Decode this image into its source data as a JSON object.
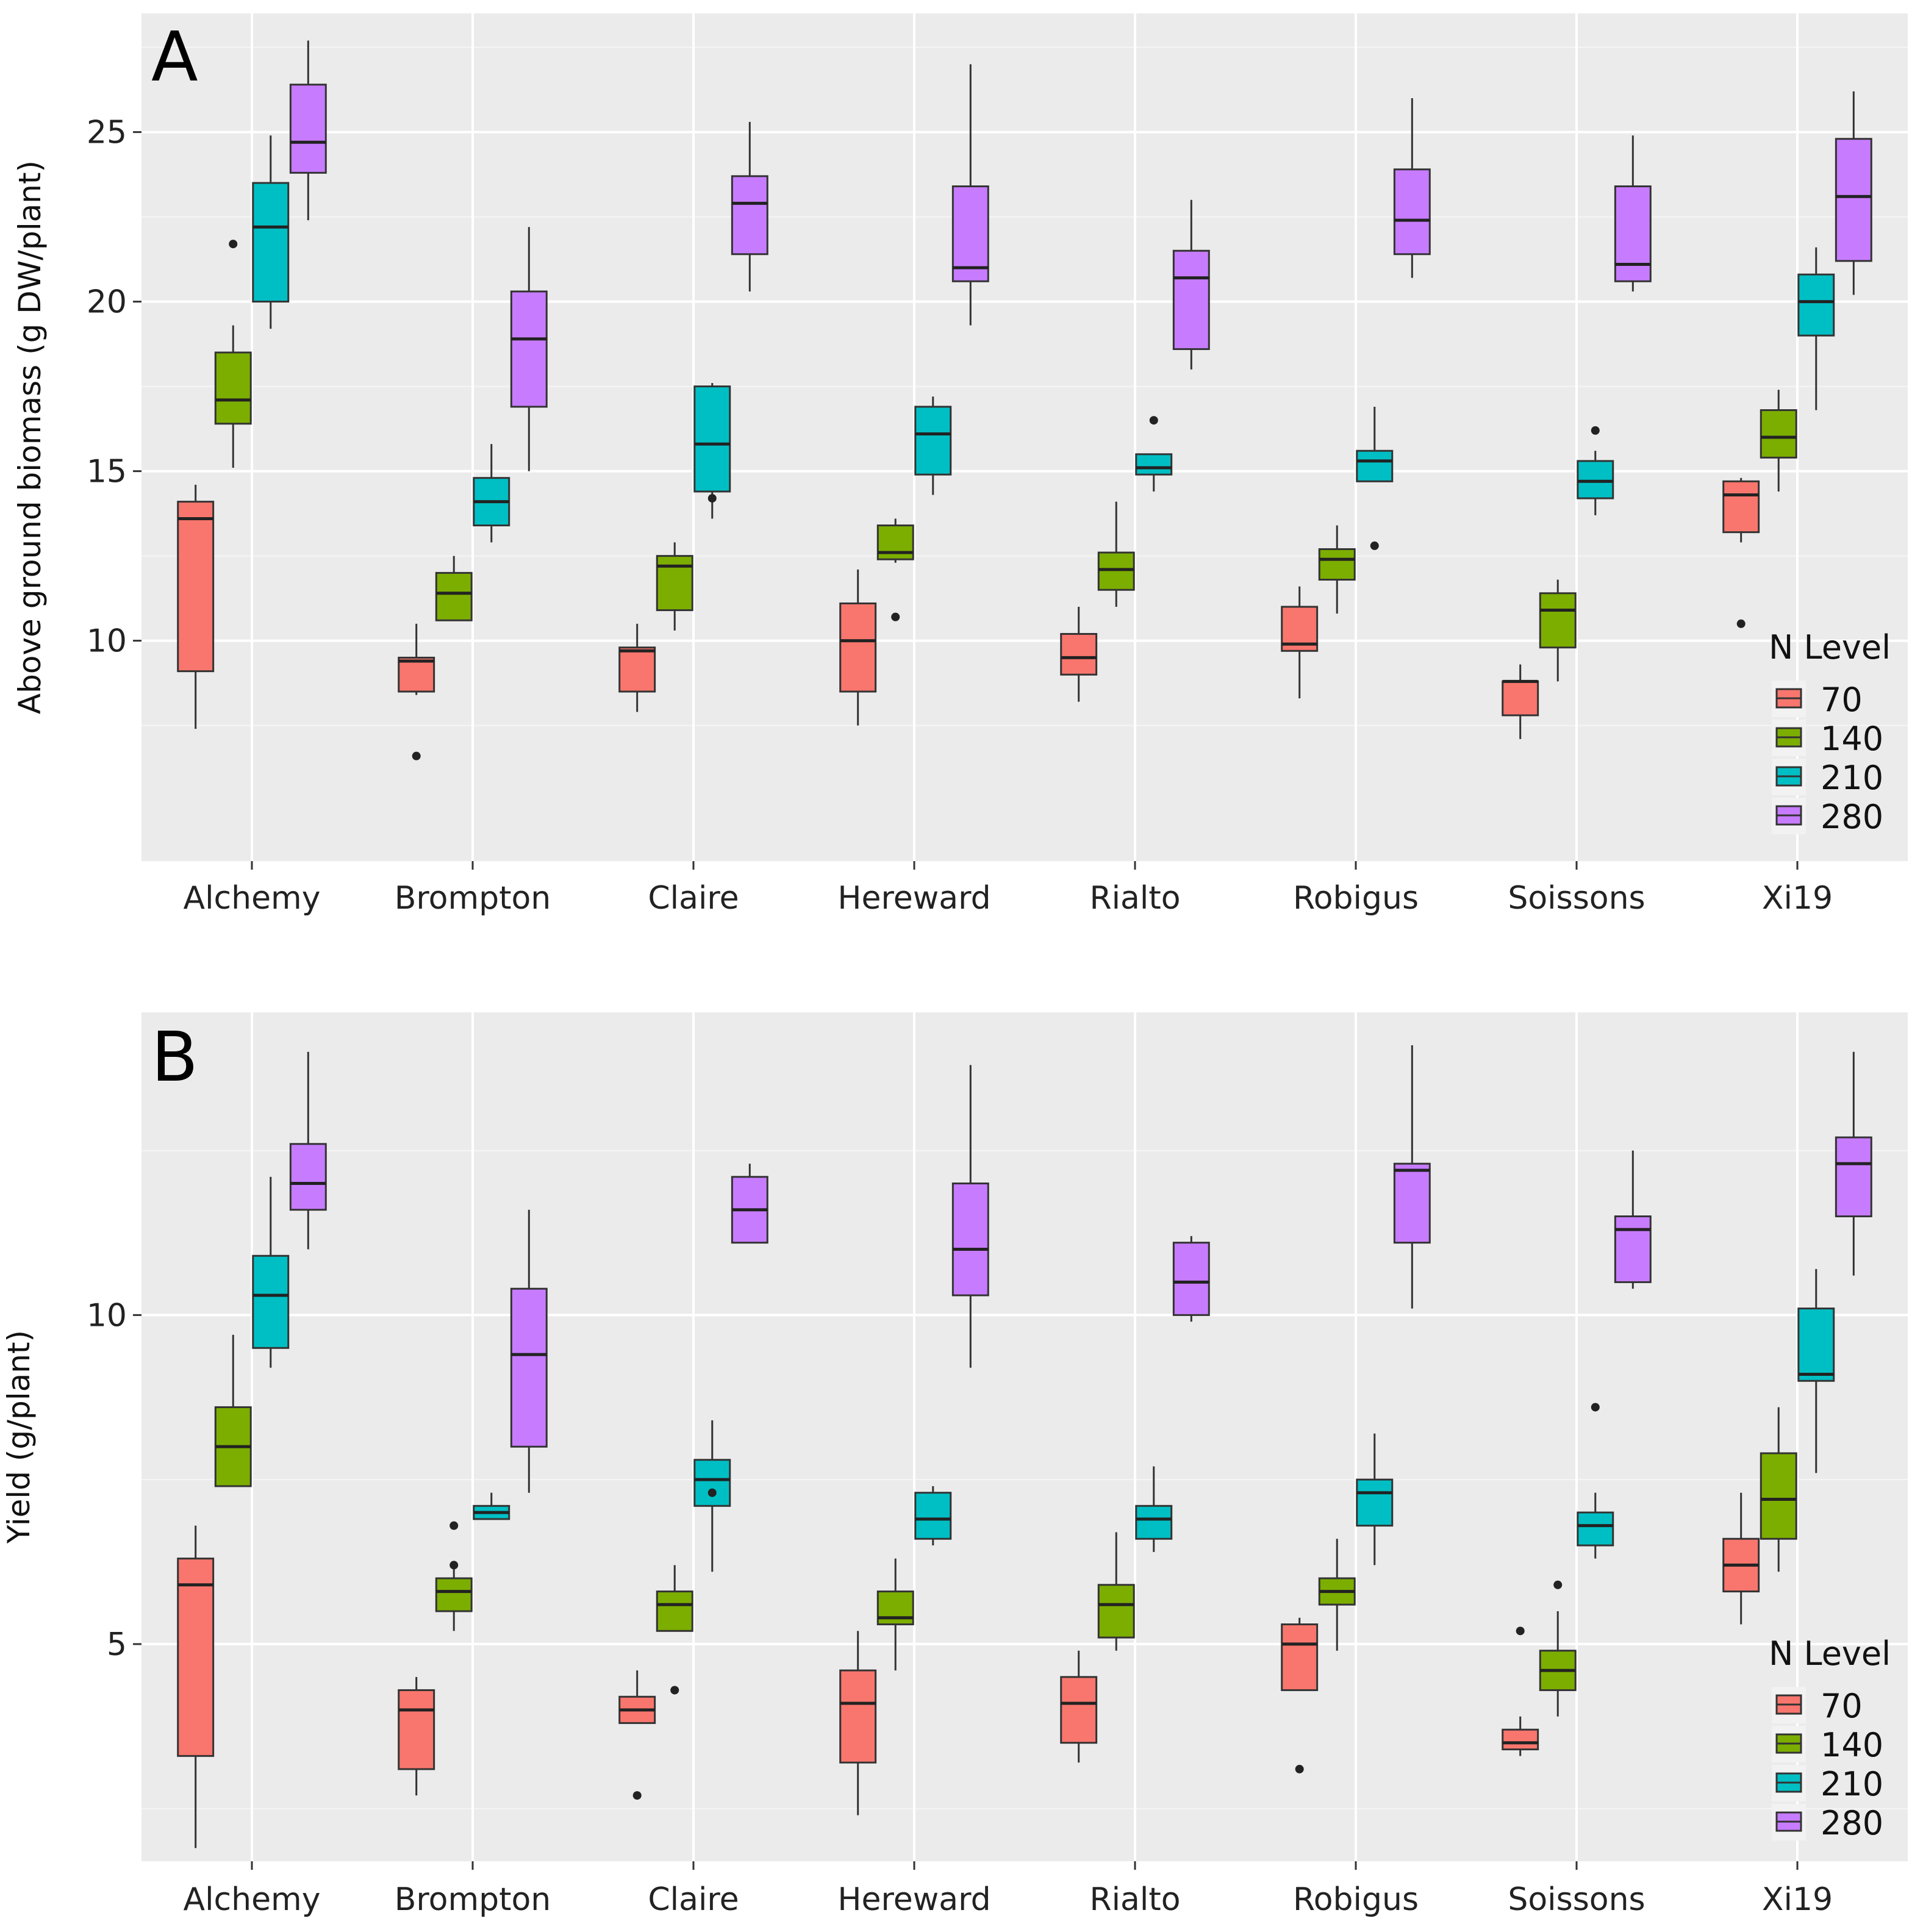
{
  "legend": {
    "title": "N Level",
    "levels": [
      "70",
      "140",
      "210",
      "280"
    ],
    "colors": [
      "#f8766d",
      "#7cae00",
      "#00bfc4",
      "#c77cff"
    ]
  },
  "chart_data": [
    {
      "type": "box",
      "panel_label": "A",
      "title": "",
      "xlabel": "",
      "ylabel": "Above ground biomass (g DW/plant)",
      "ylim": [
        3.5,
        28.5
      ],
      "yticks": [
        10,
        15,
        20,
        25
      ],
      "grid": true,
      "legend_position": "right, lower",
      "categories": [
        "Alchemy",
        "Brompton",
        "Claire",
        "Hereward",
        "Rialto",
        "Robigus",
        "Soissons",
        "Xi19"
      ],
      "series": [
        {
          "name": "70",
          "boxes": [
            {
              "min": 7.4,
              "q1": 9.1,
              "median": 13.6,
              "q3": 14.1,
              "max": 14.6,
              "outliers": []
            },
            {
              "min": 8.4,
              "q1": 8.5,
              "median": 9.4,
              "q3": 9.5,
              "max": 10.5,
              "outliers": [
                6.6
              ]
            },
            {
              "min": 7.9,
              "q1": 8.5,
              "median": 9.7,
              "q3": 9.8,
              "max": 10.5,
              "outliers": []
            },
            {
              "min": 7.5,
              "q1": 8.5,
              "median": 10.0,
              "q3": 11.1,
              "max": 12.1,
              "outliers": []
            },
            {
              "min": 8.2,
              "q1": 9.0,
              "median": 9.5,
              "q3": 10.2,
              "max": 11.0,
              "outliers": []
            },
            {
              "min": 8.3,
              "q1": 9.7,
              "median": 9.9,
              "q3": 11.0,
              "max": 11.6,
              "outliers": []
            },
            {
              "min": 7.1,
              "q1": 7.8,
              "median": 8.8,
              "q3": 8.8,
              "max": 9.3,
              "outliers": []
            },
            {
              "min": 12.9,
              "q1": 13.2,
              "median": 14.3,
              "q3": 14.7,
              "max": 14.8,
              "outliers": [
                10.5
              ]
            }
          ]
        },
        {
          "name": "140",
          "boxes": [
            {
              "min": 15.1,
              "q1": 16.4,
              "median": 17.1,
              "q3": 18.5,
              "max": 19.3,
              "outliers": [
                21.7
              ]
            },
            {
              "min": 10.6,
              "q1": 10.6,
              "median": 11.4,
              "q3": 12.0,
              "max": 12.5,
              "outliers": []
            },
            {
              "min": 10.3,
              "q1": 10.9,
              "median": 12.2,
              "q3": 12.5,
              "max": 12.9,
              "outliers": []
            },
            {
              "min": 12.3,
              "q1": 12.4,
              "median": 12.6,
              "q3": 13.4,
              "max": 13.6,
              "outliers": [
                10.7
              ]
            },
            {
              "min": 11.0,
              "q1": 11.5,
              "median": 12.1,
              "q3": 12.6,
              "max": 14.1,
              "outliers": []
            },
            {
              "min": 10.8,
              "q1": 11.8,
              "median": 12.4,
              "q3": 12.7,
              "max": 13.4,
              "outliers": []
            },
            {
              "min": 8.8,
              "q1": 9.8,
              "median": 10.9,
              "q3": 11.4,
              "max": 11.8,
              "outliers": []
            },
            {
              "min": 14.4,
              "q1": 15.4,
              "median": 16.0,
              "q3": 16.8,
              "max": 17.4,
              "outliers": []
            }
          ]
        },
        {
          "name": "210",
          "boxes": [
            {
              "min": 19.2,
              "q1": 20.0,
              "median": 22.2,
              "q3": 23.5,
              "max": 24.9,
              "outliers": []
            },
            {
              "min": 12.9,
              "q1": 13.4,
              "median": 14.1,
              "q3": 14.8,
              "max": 15.8,
              "outliers": []
            },
            {
              "min": 13.6,
              "q1": 14.4,
              "median": 15.8,
              "q3": 17.5,
              "max": 17.6,
              "outliers": [
                14.2
              ]
            },
            {
              "min": 14.3,
              "q1": 14.9,
              "median": 16.1,
              "q3": 16.9,
              "max": 17.2,
              "outliers": []
            },
            {
              "min": 14.4,
              "q1": 14.9,
              "median": 15.1,
              "q3": 15.5,
              "max": 15.5,
              "outliers": [
                16.5
              ]
            },
            {
              "min": 14.7,
              "q1": 14.7,
              "median": 15.3,
              "q3": 15.6,
              "max": 16.9,
              "outliers": [
                12.8
              ]
            },
            {
              "min": 13.7,
              "q1": 14.2,
              "median": 14.7,
              "q3": 15.3,
              "max": 15.6,
              "outliers": [
                16.2
              ]
            },
            {
              "min": 16.8,
              "q1": 19.0,
              "median": 20.0,
              "q3": 20.8,
              "max": 21.6,
              "outliers": []
            }
          ]
        },
        {
          "name": "280",
          "boxes": [
            {
              "min": 22.4,
              "q1": 23.8,
              "median": 24.7,
              "q3": 26.4,
              "max": 27.7,
              "outliers": []
            },
            {
              "min": 15.0,
              "q1": 16.9,
              "median": 18.9,
              "q3": 20.3,
              "max": 22.2,
              "outliers": []
            },
            {
              "min": 20.3,
              "q1": 21.4,
              "median": 22.9,
              "q3": 23.7,
              "max": 25.3,
              "outliers": []
            },
            {
              "min": 19.3,
              "q1": 20.6,
              "median": 21.0,
              "q3": 23.4,
              "max": 27.0,
              "outliers": []
            },
            {
              "min": 18.0,
              "q1": 18.6,
              "median": 20.7,
              "q3": 21.5,
              "max": 23.0,
              "outliers": []
            },
            {
              "min": 20.7,
              "q1": 21.4,
              "median": 22.4,
              "q3": 23.9,
              "max": 26.0,
              "outliers": []
            },
            {
              "min": 20.3,
              "q1": 20.6,
              "median": 21.1,
              "q3": 23.4,
              "max": 24.9,
              "outliers": []
            },
            {
              "min": 20.2,
              "q1": 21.2,
              "median": 23.1,
              "q3": 24.8,
              "max": 26.2,
              "outliers": []
            }
          ]
        }
      ]
    },
    {
      "type": "box",
      "panel_label": "B",
      "title": "",
      "xlabel": "",
      "ylabel": "Yield (g/plant)",
      "ylim": [
        1.7,
        14.6
      ],
      "yticks": [
        5,
        10
      ],
      "grid": true,
      "legend_position": "right, lower",
      "categories": [
        "Alchemy",
        "Brompton",
        "Claire",
        "Hereward",
        "Rialto",
        "Robigus",
        "Soissons",
        "Xi19"
      ],
      "series": [
        {
          "name": "70",
          "boxes": [
            {
              "min": 1.9,
              "q1": 3.3,
              "median": 5.9,
              "q3": 6.3,
              "max": 6.8,
              "outliers": []
            },
            {
              "min": 2.7,
              "q1": 3.1,
              "median": 4.0,
              "q3": 4.3,
              "max": 4.5,
              "outliers": []
            },
            {
              "min": 3.8,
              "q1": 3.8,
              "median": 4.0,
              "q3": 4.2,
              "max": 4.6,
              "outliers": [
                2.7
              ]
            },
            {
              "min": 2.4,
              "q1": 3.2,
              "median": 4.1,
              "q3": 4.6,
              "max": 5.2,
              "outliers": []
            },
            {
              "min": 3.2,
              "q1": 3.5,
              "median": 4.1,
              "q3": 4.5,
              "max": 4.9,
              "outliers": []
            },
            {
              "min": 4.3,
              "q1": 4.3,
              "median": 5.0,
              "q3": 5.3,
              "max": 5.4,
              "outliers": [
                3.1
              ]
            },
            {
              "min": 3.3,
              "q1": 3.4,
              "median": 3.5,
              "q3": 3.7,
              "max": 3.9,
              "outliers": [
                5.2
              ]
            },
            {
              "min": 5.3,
              "q1": 5.8,
              "median": 6.2,
              "q3": 6.6,
              "max": 7.3,
              "outliers": []
            }
          ]
        },
        {
          "name": "140",
          "boxes": [
            {
              "min": 7.4,
              "q1": 7.4,
              "median": 8.0,
              "q3": 8.6,
              "max": 9.7,
              "outliers": []
            },
            {
              "min": 5.2,
              "q1": 5.5,
              "median": 5.8,
              "q3": 6.0,
              "max": 6.2,
              "outliers": [
                6.8,
                6.2
              ]
            },
            {
              "min": 5.2,
              "q1": 5.2,
              "median": 5.6,
              "q3": 5.8,
              "max": 6.2,
              "outliers": [
                4.3
              ]
            },
            {
              "min": 4.6,
              "q1": 5.3,
              "median": 5.4,
              "q3": 5.8,
              "max": 6.3,
              "outliers": []
            },
            {
              "min": 4.9,
              "q1": 5.1,
              "median": 5.6,
              "q3": 5.9,
              "max": 6.7,
              "outliers": []
            },
            {
              "min": 4.9,
              "q1": 5.6,
              "median": 5.8,
              "q3": 6.0,
              "max": 6.6,
              "outliers": []
            },
            {
              "min": 3.9,
              "q1": 4.3,
              "median": 4.6,
              "q3": 4.9,
              "max": 5.5,
              "outliers": [
                5.9
              ]
            },
            {
              "min": 6.1,
              "q1": 6.6,
              "median": 7.2,
              "q3": 7.9,
              "max": 8.6,
              "outliers": []
            }
          ]
        },
        {
          "name": "210",
          "boxes": [
            {
              "min": 9.2,
              "q1": 9.5,
              "median": 10.3,
              "q3": 10.9,
              "max": 12.1,
              "outliers": []
            },
            {
              "min": 6.9,
              "q1": 6.9,
              "median": 7.0,
              "q3": 7.1,
              "max": 7.3,
              "outliers": []
            },
            {
              "min": 6.1,
              "q1": 7.1,
              "median": 7.5,
              "q3": 7.8,
              "max": 8.4,
              "outliers": [
                7.3
              ]
            },
            {
              "min": 6.5,
              "q1": 6.6,
              "median": 6.9,
              "q3": 7.3,
              "max": 7.4,
              "outliers": []
            },
            {
              "min": 6.4,
              "q1": 6.6,
              "median": 6.9,
              "q3": 7.1,
              "max": 7.7,
              "outliers": []
            },
            {
              "min": 6.2,
              "q1": 6.8,
              "median": 7.3,
              "q3": 7.5,
              "max": 8.2,
              "outliers": []
            },
            {
              "min": 6.3,
              "q1": 6.5,
              "median": 6.8,
              "q3": 7.0,
              "max": 7.3,
              "outliers": [
                8.6
              ]
            },
            {
              "min": 7.6,
              "q1": 9.0,
              "median": 9.1,
              "q3": 10.1,
              "max": 10.7,
              "outliers": []
            }
          ]
        },
        {
          "name": "280",
          "boxes": [
            {
              "min": 11.0,
              "q1": 11.6,
              "median": 12.0,
              "q3": 12.6,
              "max": 14.0,
              "outliers": []
            },
            {
              "min": 7.3,
              "q1": 8.0,
              "median": 9.4,
              "q3": 10.4,
              "max": 11.6,
              "outliers": []
            },
            {
              "min": 11.1,
              "q1": 11.1,
              "median": 11.6,
              "q3": 12.1,
              "max": 12.3,
              "outliers": []
            },
            {
              "min": 9.2,
              "q1": 10.3,
              "median": 11.0,
              "q3": 12.0,
              "max": 13.8,
              "outliers": []
            },
            {
              "min": 9.9,
              "q1": 10.0,
              "median": 10.5,
              "q3": 11.1,
              "max": 11.2,
              "outliers": []
            },
            {
              "min": 10.1,
              "q1": 11.1,
              "median": 12.2,
              "q3": 12.3,
              "max": 14.1,
              "outliers": []
            },
            {
              "min": 10.4,
              "q1": 10.5,
              "median": 11.3,
              "q3": 11.5,
              "max": 12.5,
              "outliers": []
            },
            {
              "min": 10.6,
              "q1": 11.5,
              "median": 12.3,
              "q3": 12.7,
              "max": 14.0,
              "outliers": []
            }
          ]
        }
      ]
    }
  ]
}
